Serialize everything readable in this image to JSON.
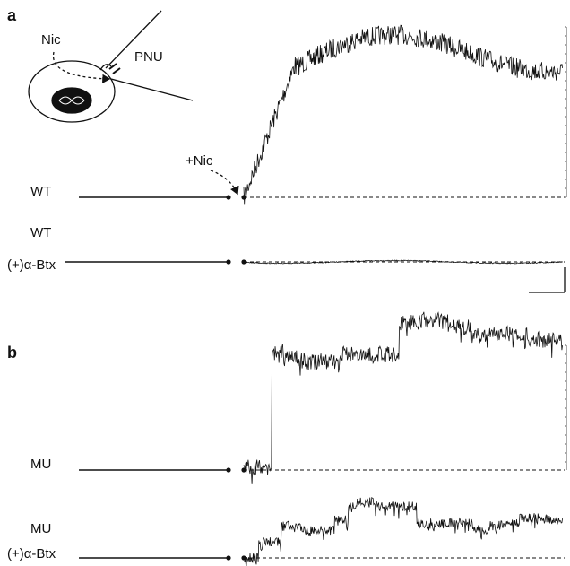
{
  "panel_a": {
    "label": "a",
    "pipette_drug": "Nic",
    "pipette_label": "PNU",
    "application": "+Nic",
    "trace_1": {
      "label": "WT"
    },
    "trace_2": {
      "label_1": "WT",
      "label_2": "(+)α-Btx"
    }
  },
  "panel_b": {
    "label": "b",
    "trace_1": {
      "label": "MU"
    },
    "trace_2": {
      "label_1": "MU",
      "label_2": "(+)α-Btx"
    }
  }
}
